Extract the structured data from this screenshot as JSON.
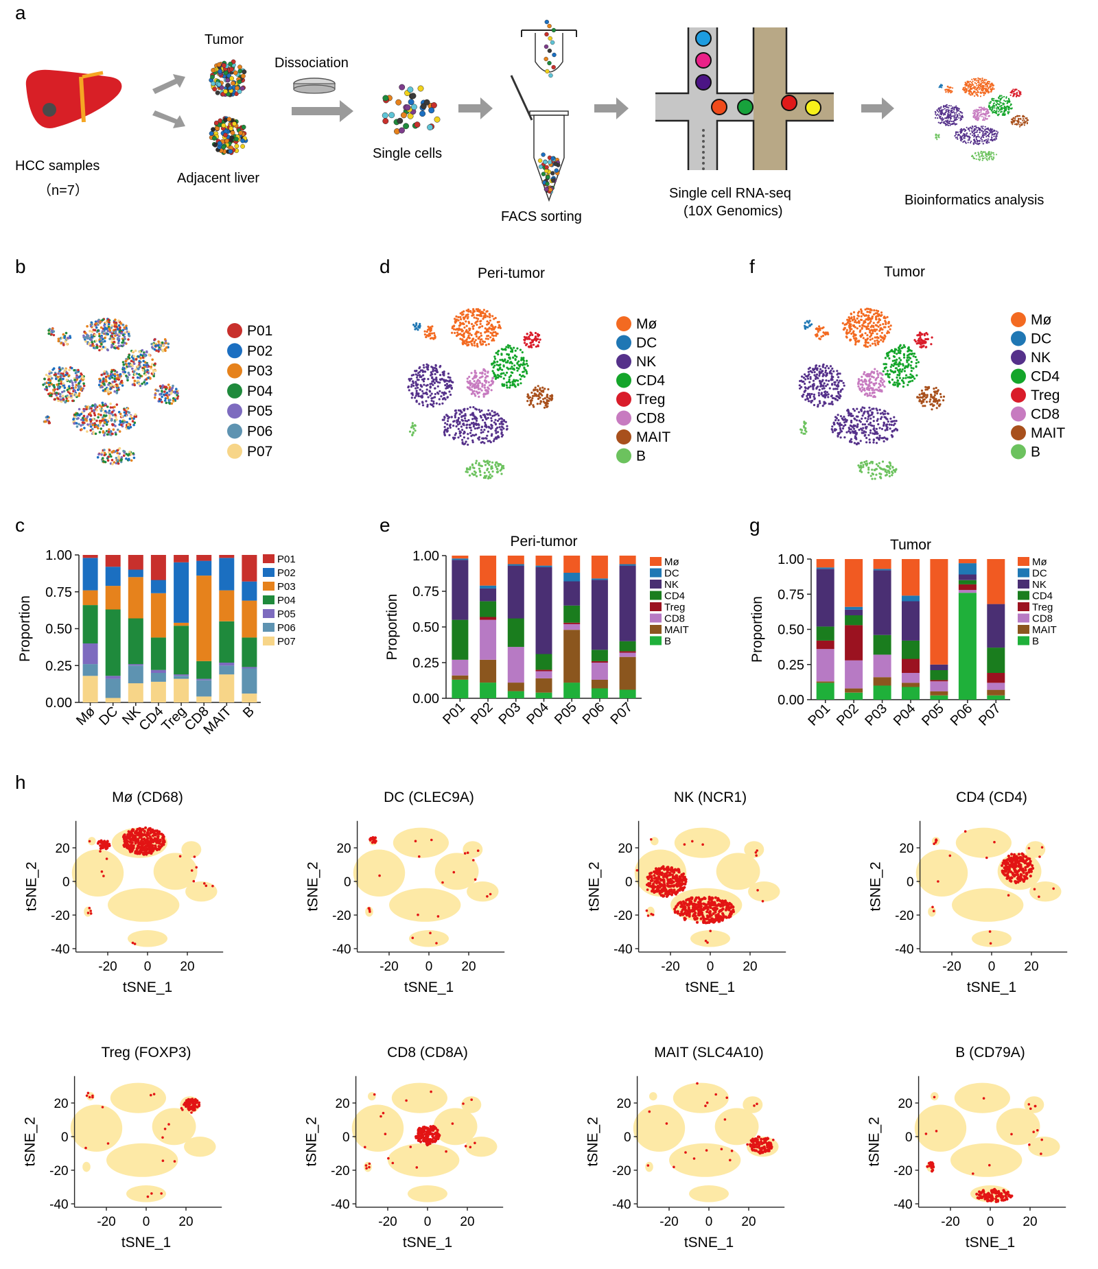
{
  "colors": {
    "Mø": "#f36a21",
    "DC": "#1f77b4",
    "NK": "#55318a",
    "CD4": "#14a52a",
    "Treg": "#d91c2a",
    "CD8": "#c77bc0",
    "MAIT": "#a8501c",
    "B": "#6cc25e",
    "P01": "#c8302c",
    "P02": "#1b6fc1",
    "P03": "#e6821c",
    "P04": "#1f8a3c",
    "P05": "#7d6bbf",
    "P06": "#5e93b1",
    "P07": "#f7d588",
    "bar_Mø": "#f15a22",
    "bar_DC": "#1f78b4",
    "bar_NK": "#4a2f73",
    "bar_CD4": "#1a7d1e",
    "bar_Treg": "#9b1220",
    "bar_CD8": "#b77ac4",
    "bar_MAIT": "#8b561e",
    "bar_B": "#1fb03a",
    "feature_bg": "#fde9a6",
    "feature_hi": "#e21414"
  },
  "panels": {
    "a": {
      "letter": "a",
      "tumor": "Tumor",
      "adjacent": "Adjacent liver",
      "dissociation": "Dissociation",
      "hcc": "HCC samples",
      "n": "（n=7）",
      "single_cells": "Single cells",
      "facs": "FACS sorting",
      "rnaseq1": "Single cell RNA-seq",
      "rnaseq2": "(10X Genomics)",
      "bioinfo": "Bioinformatics analysis"
    },
    "b": {
      "letter": "b",
      "legend": [
        "P01",
        "P02",
        "P03",
        "P04",
        "P05",
        "P06",
        "P07"
      ]
    },
    "d": {
      "letter": "d",
      "title": "Peri-tumor",
      "legend": [
        "Mø",
        "DC",
        "NK",
        "CD4",
        "Treg",
        "CD8",
        "MAIT",
        "B"
      ]
    },
    "f": {
      "letter": "f",
      "title": "Tumor",
      "legend": [
        "Mø",
        "DC",
        "NK",
        "CD4",
        "Treg",
        "CD8",
        "MAIT",
        "B"
      ]
    },
    "c": {
      "letter": "c"
    },
    "e": {
      "letter": "e"
    },
    "g": {
      "letter": "g"
    },
    "h": {
      "letter": "h"
    }
  },
  "chart_data": [
    {
      "id": "c",
      "type": "bar",
      "stacked": true,
      "title": "",
      "ylabel": "Proportion",
      "ylim": [
        0,
        1
      ],
      "yticks": [
        "0.00",
        "0.25",
        "0.50",
        "0.75",
        "1.00"
      ],
      "categories": [
        "Mø",
        "DC",
        "NK",
        "CD4",
        "Treg",
        "CD8",
        "MAIT",
        "B"
      ],
      "series": [
        {
          "name": "P07",
          "values": [
            0.18,
            0.03,
            0.13,
            0.14,
            0.16,
            0.04,
            0.19,
            0.06
          ]
        },
        {
          "name": "P06",
          "values": [
            0.08,
            0.13,
            0.12,
            0.06,
            0.02,
            0.11,
            0.06,
            0.17
          ]
        },
        {
          "name": "P05",
          "values": [
            0.14,
            0.02,
            0.01,
            0.02,
            0.01,
            0.01,
            0.02,
            0.01
          ]
        },
        {
          "name": "P04",
          "values": [
            0.26,
            0.45,
            0.31,
            0.22,
            0.33,
            0.12,
            0.28,
            0.2
          ]
        },
        {
          "name": "P03",
          "values": [
            0.1,
            0.16,
            0.28,
            0.3,
            0.02,
            0.58,
            0.21,
            0.25
          ]
        },
        {
          "name": "P02",
          "values": [
            0.22,
            0.13,
            0.05,
            0.09,
            0.41,
            0.1,
            0.22,
            0.13
          ]
        },
        {
          "name": "P01",
          "values": [
            0.02,
            0.08,
            0.1,
            0.17,
            0.05,
            0.04,
            0.02,
            0.18
          ]
        }
      ],
      "legend": [
        "P01",
        "P02",
        "P03",
        "P04",
        "P05",
        "P06",
        "P07"
      ]
    },
    {
      "id": "e",
      "type": "bar",
      "stacked": true,
      "title": "Peri-tumor",
      "ylabel": "Proportion",
      "ylim": [
        0,
        1
      ],
      "yticks": [
        "0.00",
        "0.25",
        "0.50",
        "0.75",
        "1.00"
      ],
      "categories": [
        "P01",
        "P02",
        "P03",
        "P04",
        "P05",
        "P06",
        "P07"
      ],
      "series": [
        {
          "name": "B",
          "values": [
            0.13,
            0.11,
            0.05,
            0.04,
            0.11,
            0.07,
            0.06
          ]
        },
        {
          "name": "MAIT",
          "values": [
            0.03,
            0.16,
            0.06,
            0.1,
            0.37,
            0.06,
            0.23
          ]
        },
        {
          "name": "CD8",
          "values": [
            0.11,
            0.28,
            0.25,
            0.05,
            0.04,
            0.12,
            0.03
          ]
        },
        {
          "name": "Treg",
          "values": [
            0.0,
            0.02,
            0.0,
            0.01,
            0.01,
            0.01,
            0.01
          ]
        },
        {
          "name": "CD4",
          "values": [
            0.28,
            0.11,
            0.2,
            0.11,
            0.12,
            0.08,
            0.07
          ]
        },
        {
          "name": "NK",
          "values": [
            0.42,
            0.09,
            0.37,
            0.61,
            0.17,
            0.49,
            0.53
          ]
        },
        {
          "name": "DC",
          "values": [
            0.01,
            0.02,
            0.01,
            0.01,
            0.06,
            0.01,
            0.01
          ]
        },
        {
          "name": "Mø",
          "values": [
            0.02,
            0.21,
            0.06,
            0.07,
            0.12,
            0.16,
            0.06
          ]
        }
      ],
      "legend": [
        "Mø",
        "DC",
        "NK",
        "CD4",
        "Treg",
        "CD8",
        "MAIT",
        "B"
      ]
    },
    {
      "id": "g",
      "type": "bar",
      "stacked": true,
      "title": "Tumor",
      "ylabel": "Proportion",
      "ylim": [
        0,
        1
      ],
      "yticks": [
        "0.00",
        "0.25",
        "0.50",
        "0.75",
        "1.00"
      ],
      "categories": [
        "P01",
        "P02",
        "P03",
        "P04",
        "P05",
        "P06",
        "P07"
      ],
      "series": [
        {
          "name": "B",
          "values": [
            0.12,
            0.05,
            0.1,
            0.09,
            0.03,
            0.76,
            0.03
          ]
        },
        {
          "name": "MAIT",
          "values": [
            0.01,
            0.03,
            0.06,
            0.03,
            0.03,
            0.0,
            0.04
          ]
        },
        {
          "name": "CD8",
          "values": [
            0.23,
            0.2,
            0.16,
            0.07,
            0.07,
            0.02,
            0.05
          ]
        },
        {
          "name": "Treg",
          "values": [
            0.06,
            0.25,
            0.0,
            0.1,
            0.01,
            0.04,
            0.07
          ]
        },
        {
          "name": "CD4",
          "values": [
            0.1,
            0.07,
            0.14,
            0.13,
            0.07,
            0.03,
            0.18
          ]
        },
        {
          "name": "NK",
          "values": [
            0.41,
            0.04,
            0.46,
            0.28,
            0.04,
            0.04,
            0.31
          ]
        },
        {
          "name": "DC",
          "values": [
            0.01,
            0.02,
            0.01,
            0.04,
            0.0,
            0.08,
            0.0
          ]
        },
        {
          "name": "Mø",
          "values": [
            0.06,
            0.34,
            0.07,
            0.26,
            0.75,
            0.03,
            0.32
          ]
        }
      ],
      "legend": [
        "Mø",
        "DC",
        "NK",
        "CD4",
        "Treg",
        "CD8",
        "MAIT",
        "B"
      ]
    },
    {
      "id": "h",
      "type": "scatter",
      "xlabel": "tSNE_1",
      "ylabel": "tSNE_2",
      "xlim": [
        -36,
        38
      ],
      "ylim": [
        -42,
        36
      ],
      "xticks": [
        "-20",
        "0",
        "20"
      ],
      "yticks": [
        "20",
        "0",
        "-20",
        "-40"
      ],
      "features": [
        {
          "title": "Mø  (CD68)",
          "cluster": "Mø"
        },
        {
          "title": "DC  (CLEC9A)",
          "cluster": "DC"
        },
        {
          "title": "NK  (NCR1)",
          "cluster": "NK"
        },
        {
          "title": "CD4  (CD4)",
          "cluster": "CD4"
        },
        {
          "title": "Treg  (FOXP3)",
          "cluster": "Treg"
        },
        {
          "title": "CD8  (CD8A)",
          "cluster": "CD8"
        },
        {
          "title": "MAIT  (SLC4A10)",
          "cluster": "MAIT"
        },
        {
          "title": "B  (CD79A)",
          "cluster": "B"
        }
      ]
    }
  ]
}
